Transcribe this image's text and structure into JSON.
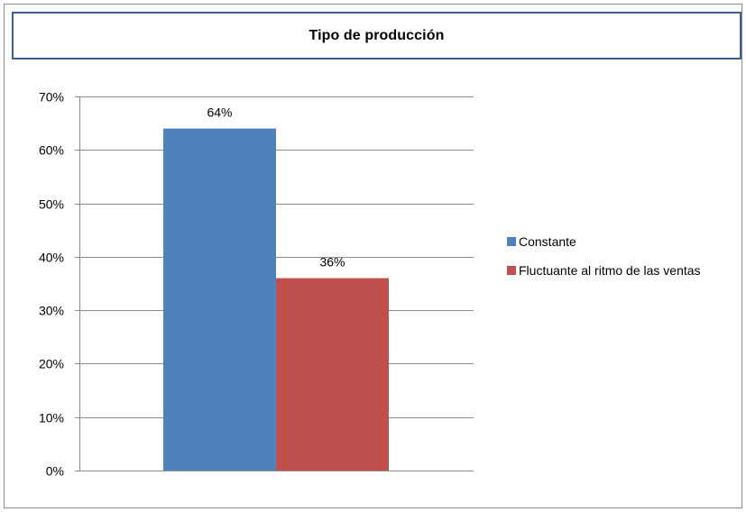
{
  "chart_data": {
    "type": "bar",
    "title": "Tipo de producción",
    "categories": [
      ""
    ],
    "series": [
      {
        "name": "Constante",
        "values": [
          0.64
        ],
        "label": "64%",
        "color": "#4f81bd"
      },
      {
        "name": "Fluctuante al ritmo de las ventas",
        "values": [
          0.36
        ],
        "label": "36%",
        "color": "#c0504d"
      }
    ],
    "ylim": [
      0,
      0.7
    ],
    "yticks": [
      {
        "value": 0,
        "label": "0%"
      },
      {
        "value": 0.1,
        "label": "10%"
      },
      {
        "value": 0.2,
        "label": "20%"
      },
      {
        "value": 0.3,
        "label": "30%"
      },
      {
        "value": 0.4,
        "label": "40%"
      },
      {
        "value": 0.5,
        "label": "50%"
      },
      {
        "value": 0.6,
        "label": "60%"
      },
      {
        "value": 0.7,
        "label": "70%"
      }
    ],
    "grid": true,
    "legend": "right",
    "xlabel": "",
    "ylabel": ""
  }
}
